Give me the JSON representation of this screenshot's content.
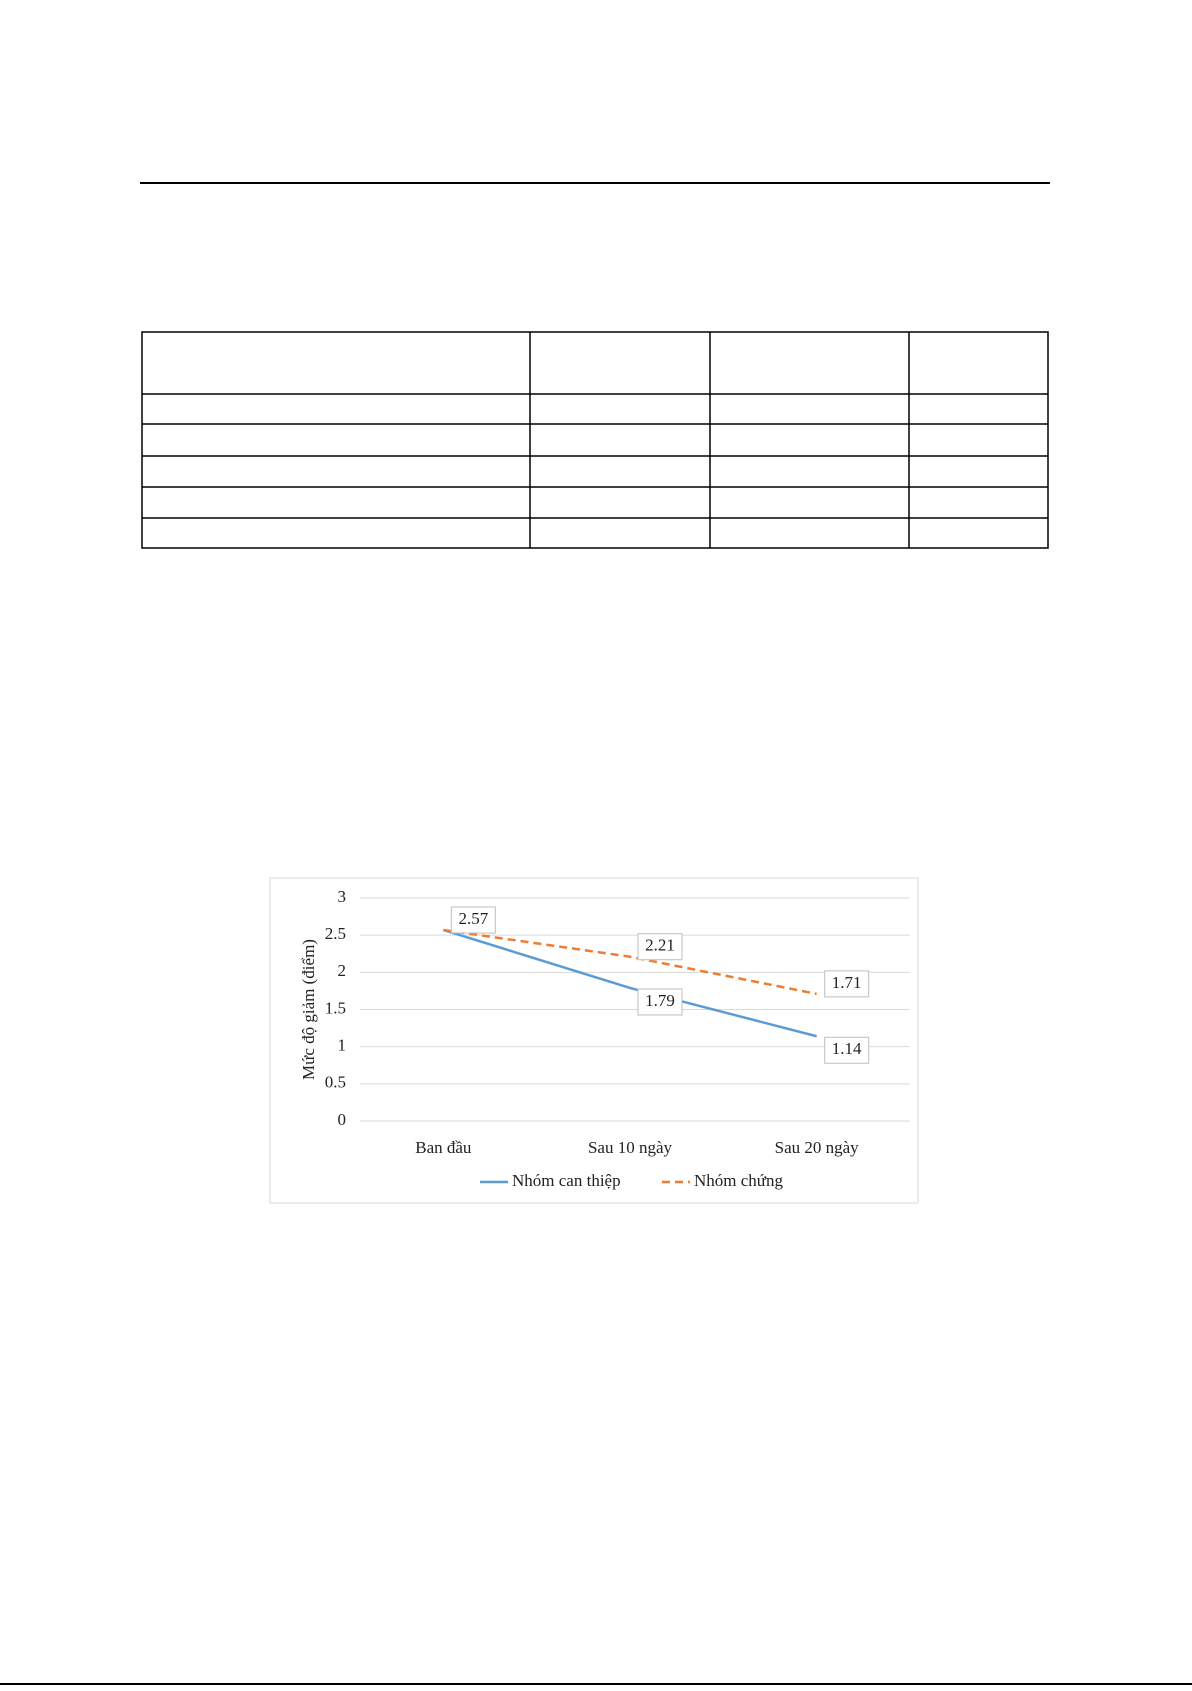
{
  "chart_data": {
    "type": "line",
    "y_label": "Mức độ giảm (điểm)",
    "categories": [
      "Ban đầu",
      "Sau 10 ngày",
      "Sau 20 ngày"
    ],
    "series": [
      {
        "name": "Nhóm can thiệp",
        "color": "#5b9bd5",
        "dash": false,
        "values": [
          2.57,
          1.79,
          1.14
        ]
      },
      {
        "name": "Nhóm chứng",
        "color": "#ed7d31",
        "dash": true,
        "values": [
          2.57,
          2.21,
          1.71
        ]
      }
    ],
    "ylim": [
      0,
      3
    ],
    "yticks": [
      0,
      0.5,
      1,
      1.5,
      2,
      2.5,
      3
    ],
    "grid": true,
    "legend": "bottom"
  }
}
